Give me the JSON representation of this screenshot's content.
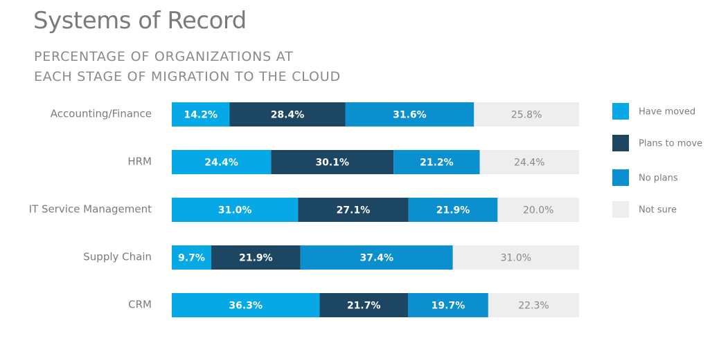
{
  "title": "Systems of Record",
  "subtitle": {
    "line1": "PERCENTAGE OF ORGANIZATIONS AT",
    "line2": "EACH STAGE OF MIGRATION TO THE CLOUD"
  },
  "colors": {
    "have_moved": "#06a9e6",
    "plans_to_move": "#1d4663",
    "no_plans": "#0c8fcf",
    "not_sure": "#eeeeee",
    "label_text": "#7b7b7b",
    "segment_text_light": "#ffffff",
    "segment_text_dark": "#888888"
  },
  "chart_data": {
    "type": "bar",
    "orientation": "horizontal",
    "stacked": true,
    "title": "Systems of Record",
    "subtitle": "PERCENTAGE OF ORGANIZATIONS AT EACH STAGE OF MIGRATION TO THE CLOUD",
    "categories": [
      "Accounting/Finance",
      "HRM",
      "IT Service Management",
      "Supply Chain",
      "CRM"
    ],
    "series": [
      {
        "name": "Have moved",
        "values": [
          14.2,
          24.4,
          31.0,
          9.7,
          36.3
        ]
      },
      {
        "name": "Plans to move",
        "values": [
          28.4,
          30.1,
          27.1,
          21.9,
          21.7
        ]
      },
      {
        "name": "No plans",
        "values": [
          31.6,
          21.2,
          21.9,
          37.4,
          19.7
        ]
      },
      {
        "name": "Not sure",
        "values": [
          25.8,
          24.4,
          20.0,
          31.0,
          22.3
        ]
      }
    ],
    "xlim": [
      0,
      100
    ],
    "value_format": "percent-1dp",
    "grid": false,
    "legend_position": "right"
  }
}
